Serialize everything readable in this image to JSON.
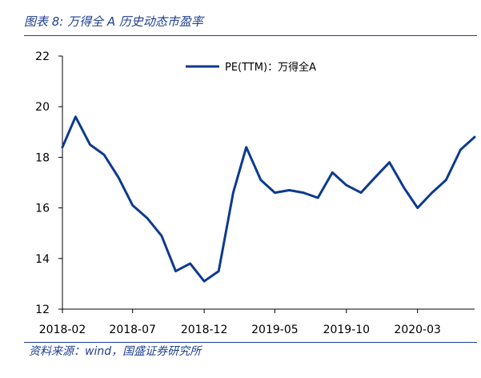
{
  "figure": {
    "title": "图表 8:  万得全 A 历史动态市盈率",
    "source": "资料来源：wind，国盛证券研究所"
  },
  "chart_data": {
    "type": "line",
    "title": "",
    "xlabel": "",
    "ylabel": "",
    "ylim": [
      12,
      22
    ],
    "yticks": [
      "12",
      "14",
      "16",
      "18",
      "20",
      "22"
    ],
    "xticks": [
      "2018-02",
      "2018-07",
      "2018-12",
      "2019-05",
      "2019-10",
      "2020-03"
    ],
    "grid": false,
    "legend_position": "top-right",
    "series": [
      {
        "name": "PE(TTM)：万得全A",
        "color": "#0d3a8e",
        "x": [
          "2018-02",
          "2018-03",
          "2018-04",
          "2018-05",
          "2018-06",
          "2018-07",
          "2018-08",
          "2018-09",
          "2018-10",
          "2018-11",
          "2018-12",
          "2019-01",
          "2019-02",
          "2019-03",
          "2019-04",
          "2019-05",
          "2019-06",
          "2019-07",
          "2019-08",
          "2019-09",
          "2019-10",
          "2019-11",
          "2019-12",
          "2020-01",
          "2020-02",
          "2020-03",
          "2020-04",
          "2020-05",
          "2020-06",
          "2020-07"
        ],
        "values": [
          18.4,
          19.6,
          18.5,
          18.1,
          17.2,
          16.1,
          15.6,
          14.9,
          13.5,
          13.8,
          13.1,
          13.5,
          16.6,
          18.4,
          17.1,
          16.6,
          16.7,
          16.6,
          16.4,
          17.4,
          16.9,
          16.6,
          17.2,
          17.8,
          16.8,
          16.0,
          16.6,
          17.1,
          18.3,
          18.8
        ]
      }
    ]
  }
}
